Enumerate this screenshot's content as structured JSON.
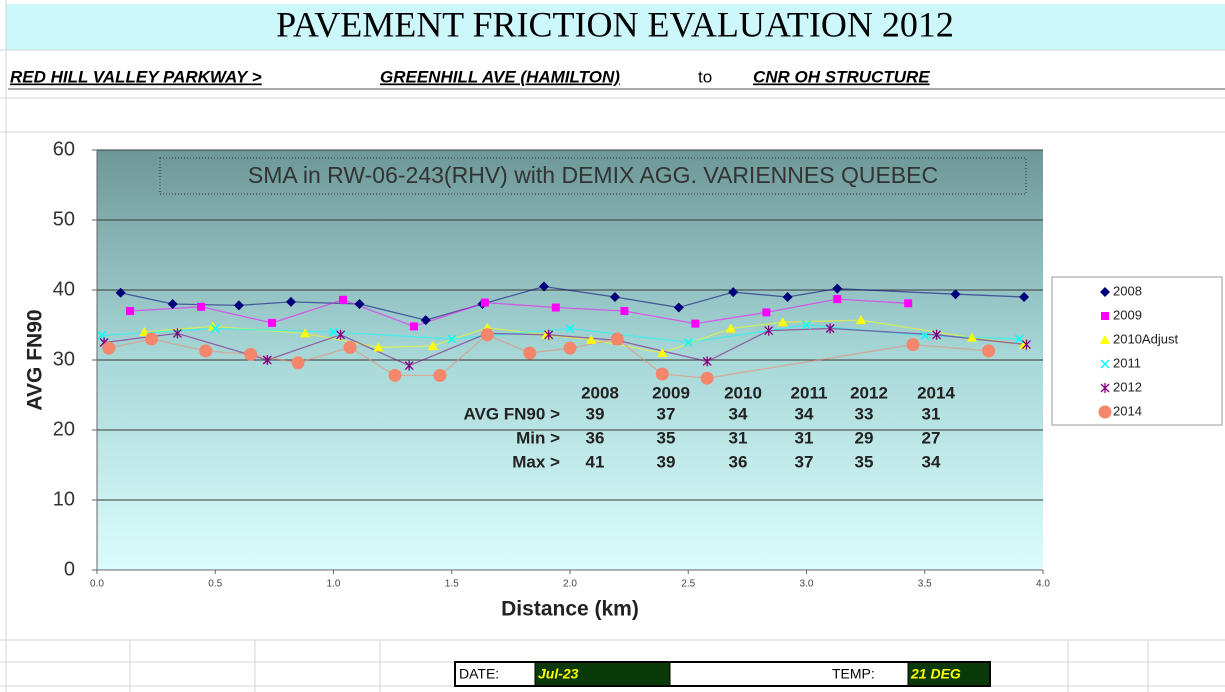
{
  "header": {
    "title": "PAVEMENT FRICTION EVALUATION 2012",
    "route": "RED HILL VALLEY PARKWAY >",
    "from": "GREENHILL AVE (HAMILTON)",
    "to_word": "to",
    "to": "CNR OH STRUCTURE"
  },
  "chart_data": {
    "type": "scatter-line",
    "title": "SMA in RW-06-243(RHV) with DEMIX AGG. VARIENNES QUEBEC",
    "x_label": "Distance (km)",
    "y_label": "AVG FN90",
    "xlim": [
      0,
      4
    ],
    "ylim": [
      0,
      60
    ],
    "xticks": [
      {
        "value": 0,
        "label": "0.0"
      },
      0.5,
      {
        "value": 1,
        "label": "1.0"
      },
      1.5,
      {
        "value": 2,
        "label": "2.0"
      },
      2.5,
      {
        "value": 3,
        "label": "3.0"
      },
      3.5,
      {
        "value": 4,
        "label": "4.0"
      }
    ],
    "yticks": [
      0,
      10,
      20,
      30,
      40,
      50,
      60
    ],
    "grid": true,
    "legend": "right",
    "series": [
      {
        "name": "2008",
        "color": "#00007a",
        "marker": "diamond",
        "x": [
          0.1,
          0.32,
          0.6,
          0.82,
          1.11,
          1.39,
          1.63,
          1.89,
          2.19,
          2.46,
          2.69,
          2.92,
          3.13,
          3.63,
          3.92
        ],
        "values": [
          39.6,
          38,
          37.8,
          38.3,
          38,
          35.7,
          38,
          40.5,
          39,
          37.5,
          39.7,
          39,
          40.2,
          39.4,
          39
        ]
      },
      {
        "name": "2009",
        "color": "#ff00ff",
        "marker": "square",
        "x": [
          0.14,
          0.44,
          0.74,
          1.04,
          1.34,
          1.64,
          1.94,
          2.23,
          2.53,
          2.83,
          3.13,
          3.43
        ],
        "values": [
          37,
          37.6,
          35.3,
          38.6,
          34.8,
          38.2,
          37.5,
          37,
          35.2,
          36.8,
          38.7,
          38.1
        ]
      },
      {
        "name": "2010Adjust",
        "color": "#ffff00",
        "marker": "triangle",
        "x": [
          0.2,
          0.49,
          0.88,
          1.19,
          1.42,
          1.65,
          1.9,
          2.09,
          2.39,
          2.68,
          2.9,
          3.23,
          3.7,
          3.92
        ],
        "values": [
          34,
          34.8,
          33.8,
          31.8,
          32,
          34.6,
          33.6,
          32.9,
          31,
          34.5,
          35.4,
          35.7,
          33.2,
          32.2
        ]
      },
      {
        "name": "2011",
        "color": "#00ffff",
        "marker": "x",
        "x": [
          0.02,
          0.5,
          1.0,
          1.5,
          2.0,
          2.5,
          3.0,
          3.5,
          3.9
        ],
        "values": [
          33.5,
          34.5,
          34,
          33,
          34.5,
          32.5,
          35,
          33.5,
          33
        ]
      },
      {
        "name": "2012",
        "color": "#800080",
        "marker": "star",
        "x": [
          0.03,
          0.34,
          0.72,
          1.03,
          1.32,
          1.65,
          1.91,
          2.2,
          2.58,
          2.84,
          3.1,
          3.55,
          3.93
        ],
        "values": [
          32.5,
          33.8,
          30,
          33.6,
          29.2,
          33.8,
          33.6,
          32.8,
          29.8,
          34.2,
          34.5,
          33.6,
          32.2
        ]
      },
      {
        "name": "2014",
        "color": "#f4866b",
        "marker": "circle",
        "x": [
          0.05,
          0.23,
          0.46,
          0.65,
          0.85,
          1.07,
          1.26,
          1.45,
          1.65,
          1.83,
          2.0,
          2.2,
          2.39,
          2.58,
          3.45,
          3.77
        ],
        "values": [
          31.7,
          33,
          31.3,
          30.8,
          29.6,
          31.8,
          27.8,
          27.8,
          33.6,
          31,
          31.7,
          33,
          28,
          27.4,
          32.2,
          31.3
        ]
      }
    ],
    "stats_table": {
      "years": [
        "2008",
        "2009",
        "2010",
        "2011",
        "2012",
        "2014"
      ],
      "rows": [
        {
          "label": "AVG FN90  >",
          "values": [
            39,
            37,
            34,
            34,
            33,
            31
          ]
        },
        {
          "label": "Min  >",
          "values": [
            36,
            35,
            31,
            31,
            29,
            27
          ]
        },
        {
          "label": "Max  >",
          "values": [
            41,
            39,
            36,
            37,
            35,
            34
          ]
        }
      ]
    }
  },
  "footer": {
    "date_label": "DATE:",
    "date": "Jul-23",
    "temp_label": "TEMP:",
    "temp": "21 DEG"
  }
}
